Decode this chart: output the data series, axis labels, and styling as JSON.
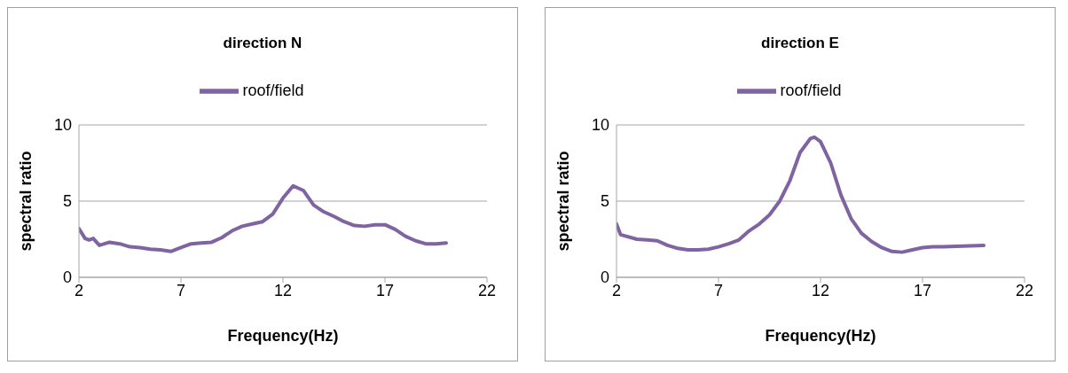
{
  "chart_data": [
    {
      "type": "line",
      "title": "direction N",
      "xlabel": "Frequency(Hz)",
      "ylabel": "spectral ratio",
      "x": [
        2,
        2.3,
        2.5,
        2.7,
        3,
        3.5,
        4,
        4.5,
        5,
        5.5,
        6,
        6.5,
        7,
        7.5,
        8,
        8.5,
        9,
        9.5,
        10,
        10.5,
        11,
        11.5,
        12,
        12.5,
        13,
        13.5,
        14,
        14.5,
        15,
        15.5,
        16,
        16.5,
        17,
        17.5,
        18,
        18.5,
        19,
        19.5,
        20
      ],
      "series": [
        {
          "name": "roof/field",
          "color": "#8064a2",
          "values": [
            3.2,
            2.55,
            2.45,
            2.55,
            2.1,
            2.3,
            2.2,
            2.0,
            1.95,
            1.85,
            1.8,
            1.7,
            1.95,
            2.2,
            2.25,
            2.3,
            2.6,
            3.05,
            3.35,
            3.5,
            3.65,
            4.15,
            5.2,
            6.0,
            5.7,
            4.75,
            4.3,
            4.0,
            3.65,
            3.4,
            3.35,
            3.45,
            3.45,
            3.15,
            2.7,
            2.4,
            2.2,
            2.2,
            2.25
          ]
        }
      ],
      "xlim": [
        2,
        22
      ],
      "xticks": [
        2,
        7,
        12,
        17,
        22
      ],
      "ylim": [
        0,
        10
      ],
      "yticks": [
        0,
        5,
        10
      ],
      "grid": "y",
      "legend": "top",
      "marker": "none",
      "line_style": "solid"
    },
    {
      "type": "line",
      "title": "direction E",
      "xlabel": "Frequency(Hz)",
      "ylabel": "spectral ratio",
      "x": [
        2,
        2.2,
        3,
        3.5,
        4,
        4.5,
        5,
        5.5,
        6,
        6.5,
        7,
        7.5,
        8,
        8.5,
        9,
        9.5,
        10,
        10.5,
        11,
        11.5,
        11.7,
        12,
        12.5,
        13,
        13.5,
        14,
        14.5,
        15,
        15.5,
        16,
        16.5,
        17,
        17.5,
        18,
        19,
        20
      ],
      "series": [
        {
          "name": "roof/field",
          "color": "#8064a2",
          "values": [
            3.5,
            2.8,
            2.5,
            2.45,
            2.4,
            2.1,
            1.9,
            1.8,
            1.8,
            1.85,
            2.0,
            2.2,
            2.45,
            3.05,
            3.5,
            4.1,
            5.0,
            6.35,
            8.2,
            9.1,
            9.2,
            8.9,
            7.5,
            5.4,
            3.85,
            2.9,
            2.35,
            1.95,
            1.7,
            1.65,
            1.8,
            1.95,
            2.0,
            2.0,
            2.05,
            2.1
          ]
        }
      ],
      "xlim": [
        2,
        22
      ],
      "xticks": [
        2,
        7,
        12,
        17,
        22
      ],
      "ylim": [
        0,
        10
      ],
      "yticks": [
        0,
        5,
        10
      ],
      "grid": "y",
      "legend": "top",
      "marker": "none",
      "line_style": "solid"
    }
  ]
}
